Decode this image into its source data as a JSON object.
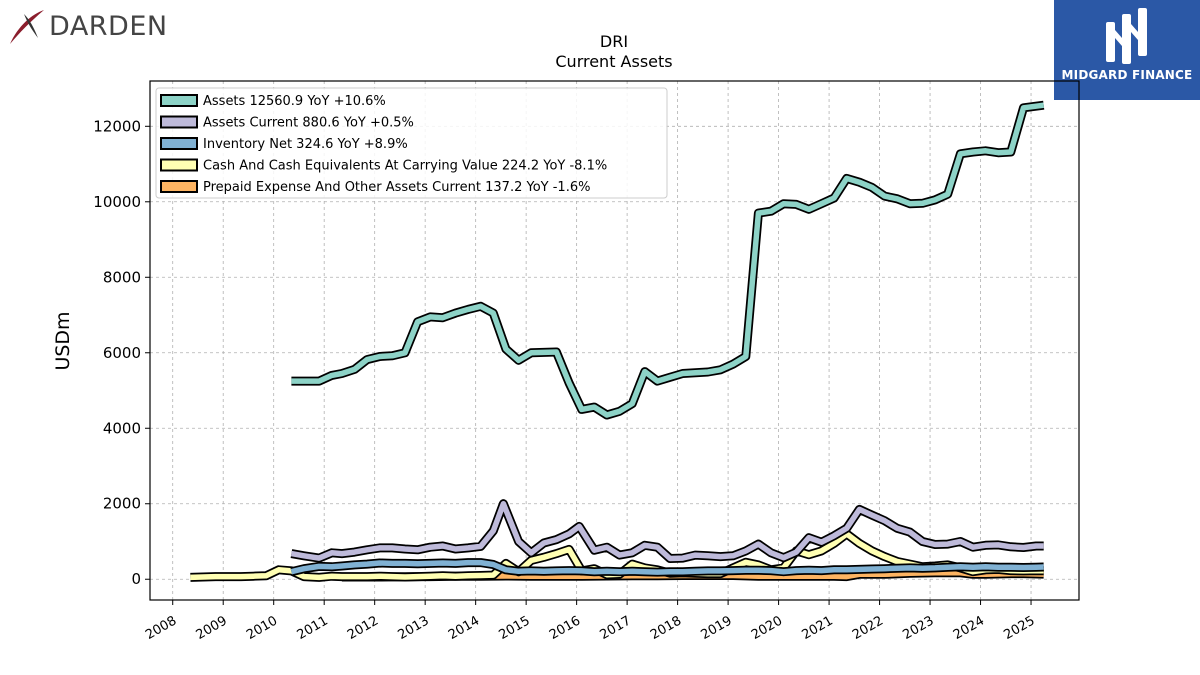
{
  "branding": {
    "left_logo_text": "DARDEN",
    "right_logo_text": "MIDGARD FINANCE",
    "right_logo_color": "#2b58a6"
  },
  "chart_data": {
    "type": "line",
    "title": "DRI",
    "subtitle": "Current  Assets",
    "ylabel": "USDm",
    "xlabel": "",
    "ylim": [
      -550,
      13200
    ],
    "xlim": [
      2007.55,
      2025.95
    ],
    "yticks": [
      0,
      2000,
      4000,
      6000,
      8000,
      10000,
      12000
    ],
    "xticks": [
      "2008",
      "2009",
      "2010",
      "2011",
      "2012",
      "2013",
      "2014",
      "2015",
      "2016",
      "2017",
      "2018",
      "2019",
      "2020",
      "2021",
      "2022",
      "2023",
      "2024",
      "2025"
    ],
    "grid": true,
    "legend_position": "top-left",
    "series": [
      {
        "name": "Assets",
        "legend": "Assets  12560.9 YoY +10.6%",
        "color": "#8dd3c7",
        "points": [
          [
            2010.35,
            5250
          ],
          [
            2010.9,
            5250
          ],
          [
            2011.15,
            5400
          ],
          [
            2011.35,
            5450
          ],
          [
            2011.6,
            5560
          ],
          [
            2011.85,
            5820
          ],
          [
            2012.1,
            5900
          ],
          [
            2012.35,
            5920
          ],
          [
            2012.6,
            6000
          ],
          [
            2012.85,
            6820
          ],
          [
            2013.1,
            6950
          ],
          [
            2013.35,
            6930
          ],
          [
            2013.6,
            7050
          ],
          [
            2013.85,
            7150
          ],
          [
            2014.1,
            7230
          ],
          [
            2014.35,
            7050
          ],
          [
            2014.6,
            6100
          ],
          [
            2014.85,
            5800
          ],
          [
            2015.1,
            6000
          ],
          [
            2015.35,
            6010
          ],
          [
            2015.6,
            6020
          ],
          [
            2015.85,
            5200
          ],
          [
            2016.1,
            4500
          ],
          [
            2016.35,
            4560
          ],
          [
            2016.6,
            4350
          ],
          [
            2016.85,
            4450
          ],
          [
            2017.1,
            4650
          ],
          [
            2017.35,
            5500
          ],
          [
            2017.6,
            5250
          ],
          [
            2017.85,
            5350
          ],
          [
            2018.1,
            5450
          ],
          [
            2018.35,
            5470
          ],
          [
            2018.6,
            5490
          ],
          [
            2018.85,
            5550
          ],
          [
            2019.1,
            5700
          ],
          [
            2019.35,
            5900
          ],
          [
            2019.6,
            9700
          ],
          [
            2019.85,
            9750
          ],
          [
            2020.1,
            9950
          ],
          [
            2020.35,
            9930
          ],
          [
            2020.6,
            9800
          ],
          [
            2020.85,
            9950
          ],
          [
            2021.1,
            10100
          ],
          [
            2021.35,
            10620
          ],
          [
            2021.6,
            10520
          ],
          [
            2021.85,
            10380
          ],
          [
            2022.1,
            10150
          ],
          [
            2022.35,
            10080
          ],
          [
            2022.6,
            9950
          ],
          [
            2022.85,
            9960
          ],
          [
            2023.1,
            10050
          ],
          [
            2023.35,
            10200
          ],
          [
            2023.6,
            11270
          ],
          [
            2023.85,
            11320
          ],
          [
            2024.1,
            11350
          ],
          [
            2024.35,
            11300
          ],
          [
            2024.6,
            11320
          ],
          [
            2024.85,
            12490
          ],
          [
            2025.25,
            12560
          ]
        ]
      },
      {
        "name": "Assets Current",
        "legend": "Assets Current  880.6 YoY +0.5%",
        "color": "#bebada",
        "points": [
          [
            2010.35,
            680
          ],
          [
            2010.6,
            620
          ],
          [
            2010.9,
            560
          ],
          [
            2011.15,
            700
          ],
          [
            2011.35,
            680
          ],
          [
            2011.6,
            720
          ],
          [
            2011.85,
            780
          ],
          [
            2012.1,
            830
          ],
          [
            2012.35,
            830
          ],
          [
            2012.6,
            800
          ],
          [
            2012.85,
            780
          ],
          [
            2013.1,
            850
          ],
          [
            2013.35,
            880
          ],
          [
            2013.6,
            800
          ],
          [
            2013.85,
            830
          ],
          [
            2014.1,
            870
          ],
          [
            2014.35,
            1280
          ],
          [
            2014.55,
            2000
          ],
          [
            2014.85,
            1000
          ],
          [
            2015.1,
            700
          ],
          [
            2015.35,
            960
          ],
          [
            2015.6,
            1050
          ],
          [
            2015.85,
            1200
          ],
          [
            2016.05,
            1400
          ],
          [
            2016.35,
            770
          ],
          [
            2016.6,
            850
          ],
          [
            2016.85,
            640
          ],
          [
            2017.1,
            700
          ],
          [
            2017.35,
            900
          ],
          [
            2017.6,
            850
          ],
          [
            2017.85,
            550
          ],
          [
            2018.1,
            560
          ],
          [
            2018.35,
            640
          ],
          [
            2018.6,
            620
          ],
          [
            2018.85,
            600
          ],
          [
            2019.1,
            620
          ],
          [
            2019.35,
            750
          ],
          [
            2019.6,
            930
          ],
          [
            2019.85,
            700
          ],
          [
            2020.1,
            570
          ],
          [
            2020.35,
            720
          ],
          [
            2020.6,
            1100
          ],
          [
            2020.85,
            980
          ],
          [
            2021.1,
            1150
          ],
          [
            2021.35,
            1350
          ],
          [
            2021.6,
            1850
          ],
          [
            2021.85,
            1700
          ],
          [
            2022.1,
            1550
          ],
          [
            2022.35,
            1350
          ],
          [
            2022.6,
            1250
          ],
          [
            2022.85,
            1000
          ],
          [
            2023.1,
            920
          ],
          [
            2023.35,
            930
          ],
          [
            2023.6,
            1000
          ],
          [
            2023.85,
            850
          ],
          [
            2024.1,
            900
          ],
          [
            2024.35,
            910
          ],
          [
            2024.6,
            860
          ],
          [
            2024.85,
            840
          ],
          [
            2025.1,
            880
          ],
          [
            2025.25,
            880
          ]
        ]
      },
      {
        "name": "Inventory Net",
        "legend": "Inventory Net  324.6 YoY +8.9%",
        "color": "#80b1d3",
        "points": [
          [
            2010.35,
            200
          ],
          [
            2010.6,
            280
          ],
          [
            2010.9,
            340
          ],
          [
            2011.15,
            330
          ],
          [
            2011.35,
            350
          ],
          [
            2011.6,
            380
          ],
          [
            2011.85,
            400
          ],
          [
            2012.1,
            430
          ],
          [
            2012.35,
            420
          ],
          [
            2012.6,
            420
          ],
          [
            2012.85,
            410
          ],
          [
            2013.1,
            420
          ],
          [
            2013.35,
            430
          ],
          [
            2013.6,
            420
          ],
          [
            2013.85,
            440
          ],
          [
            2014.1,
            440
          ],
          [
            2014.35,
            390
          ],
          [
            2014.6,
            250
          ],
          [
            2014.85,
            210
          ],
          [
            2015.1,
            220
          ],
          [
            2015.35,
            210
          ],
          [
            2015.6,
            220
          ],
          [
            2015.85,
            230
          ],
          [
            2016.1,
            220
          ],
          [
            2016.35,
            200
          ],
          [
            2016.6,
            210
          ],
          [
            2016.85,
            200
          ],
          [
            2017.1,
            210
          ],
          [
            2017.35,
            200
          ],
          [
            2017.6,
            190
          ],
          [
            2017.85,
            200
          ],
          [
            2018.1,
            200
          ],
          [
            2018.35,
            210
          ],
          [
            2018.6,
            220
          ],
          [
            2018.85,
            220
          ],
          [
            2019.1,
            230
          ],
          [
            2019.35,
            240
          ],
          [
            2019.6,
            240
          ],
          [
            2019.85,
            230
          ],
          [
            2020.1,
            200
          ],
          [
            2020.35,
            230
          ],
          [
            2020.6,
            240
          ],
          [
            2020.85,
            230
          ],
          [
            2021.1,
            250
          ],
          [
            2021.35,
            250
          ],
          [
            2021.6,
            260
          ],
          [
            2021.85,
            270
          ],
          [
            2022.1,
            280
          ],
          [
            2022.35,
            290
          ],
          [
            2022.6,
            300
          ],
          [
            2022.85,
            290
          ],
          [
            2023.1,
            300
          ],
          [
            2023.35,
            320
          ],
          [
            2023.6,
            330
          ],
          [
            2023.85,
            320
          ],
          [
            2024.1,
            330
          ],
          [
            2024.35,
            320
          ],
          [
            2024.6,
            320
          ],
          [
            2024.85,
            310
          ],
          [
            2025.1,
            320
          ],
          [
            2025.25,
            325
          ]
        ]
      },
      {
        "name": "Cash And Cash Equivalents At Carrying Value",
        "legend": "Cash And Cash Equivalents At Carrying Value  224.2 YoY -8.1%",
        "color": "#ffffb3",
        "points": [
          [
            2008.35,
            50
          ],
          [
            2008.6,
            60
          ],
          [
            2008.85,
            70
          ],
          [
            2009.1,
            70
          ],
          [
            2009.35,
            70
          ],
          [
            2009.6,
            80
          ],
          [
            2009.85,
            90
          ],
          [
            2010.1,
            250
          ],
          [
            2010.35,
            220
          ],
          [
            2010.6,
            70
          ],
          [
            2010.9,
            50
          ],
          [
            2011.15,
            80
          ],
          [
            2011.35,
            70
          ],
          [
            2011.6,
            70
          ],
          [
            2011.85,
            70
          ],
          [
            2012.1,
            80
          ],
          [
            2012.35,
            70
          ],
          [
            2012.6,
            60
          ],
          [
            2012.85,
            70
          ],
          [
            2013.1,
            80
          ],
          [
            2013.35,
            90
          ],
          [
            2013.6,
            80
          ],
          [
            2013.85,
            90
          ],
          [
            2014.1,
            100
          ],
          [
            2014.35,
            110
          ],
          [
            2014.6,
            420
          ],
          [
            2014.85,
            200
          ],
          [
            2015.1,
            500
          ],
          [
            2015.35,
            580
          ],
          [
            2015.6,
            680
          ],
          [
            2015.85,
            790
          ],
          [
            2016.1,
            220
          ],
          [
            2016.35,
            280
          ],
          [
            2016.6,
            120
          ],
          [
            2016.85,
            130
          ],
          [
            2017.1,
            400
          ],
          [
            2017.35,
            300
          ],
          [
            2017.6,
            250
          ],
          [
            2017.85,
            160
          ],
          [
            2018.1,
            170
          ],
          [
            2018.35,
            160
          ],
          [
            2018.6,
            150
          ],
          [
            2018.85,
            150
          ],
          [
            2019.1,
            300
          ],
          [
            2019.35,
            450
          ],
          [
            2019.6,
            380
          ],
          [
            2019.85,
            250
          ],
          [
            2020.1,
            300
          ],
          [
            2020.35,
            750
          ],
          [
            2020.6,
            650
          ],
          [
            2020.85,
            750
          ],
          [
            2021.1,
            950
          ],
          [
            2021.35,
            1200
          ],
          [
            2021.6,
            950
          ],
          [
            2021.85,
            750
          ],
          [
            2022.1,
            600
          ],
          [
            2022.35,
            470
          ],
          [
            2022.6,
            400
          ],
          [
            2022.85,
            330
          ],
          [
            2023.1,
            350
          ],
          [
            2023.35,
            380
          ],
          [
            2023.6,
            300
          ],
          [
            2023.85,
            200
          ],
          [
            2024.1,
            250
          ],
          [
            2024.35,
            260
          ],
          [
            2024.6,
            230
          ],
          [
            2024.85,
            220
          ],
          [
            2025.1,
            230
          ],
          [
            2025.25,
            224
          ]
        ]
      },
      {
        "name": "Prepaid Expense And Other Assets Current",
        "legend": "Prepaid Expense And Other Assets Current  137.2 YoY -1.6%",
        "color": "#fdb462",
        "points": [
          [
            2011.35,
            60
          ],
          [
            2011.6,
            60
          ],
          [
            2012.1,
            60
          ],
          [
            2012.6,
            65
          ],
          [
            2013.1,
            70
          ],
          [
            2013.6,
            80
          ],
          [
            2014.1,
            80
          ],
          [
            2014.6,
            85
          ],
          [
            2015.1,
            80
          ],
          [
            2015.6,
            80
          ],
          [
            2016.1,
            80
          ],
          [
            2016.6,
            85
          ],
          [
            2017.1,
            90
          ],
          [
            2017.6,
            95
          ],
          [
            2018.1,
            100
          ],
          [
            2018.6,
            100
          ],
          [
            2019.1,
            100
          ],
          [
            2019.6,
            80
          ],
          [
            2020.1,
            80
          ],
          [
            2020.6,
            80
          ],
          [
            2021.1,
            80
          ],
          [
            2021.35,
            70
          ],
          [
            2021.6,
            130
          ],
          [
            2022.1,
            130
          ],
          [
            2022.6,
            160
          ],
          [
            2023.1,
            170
          ],
          [
            2023.6,
            170
          ],
          [
            2023.85,
            130
          ],
          [
            2024.1,
            130
          ],
          [
            2024.6,
            150
          ],
          [
            2024.85,
            150
          ],
          [
            2025.25,
            137
          ]
        ]
      }
    ]
  }
}
